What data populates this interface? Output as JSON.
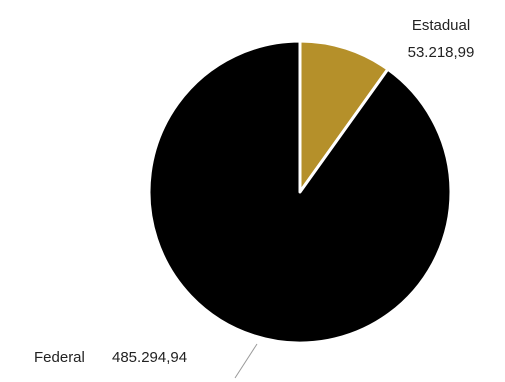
{
  "chart_data": {
    "type": "pie",
    "categories": [
      "Estadual",
      "Federal"
    ],
    "values": [
      53218.99,
      485294.94
    ],
    "value_labels": [
      "53.218,99",
      "485.294,94"
    ],
    "colors": [
      "#b5902a",
      "#000000"
    ],
    "slice_border_color": "#ffffff",
    "start_angle": "12 o'clock, clockwise",
    "legend": "none",
    "data_label_placement": "outside"
  }
}
